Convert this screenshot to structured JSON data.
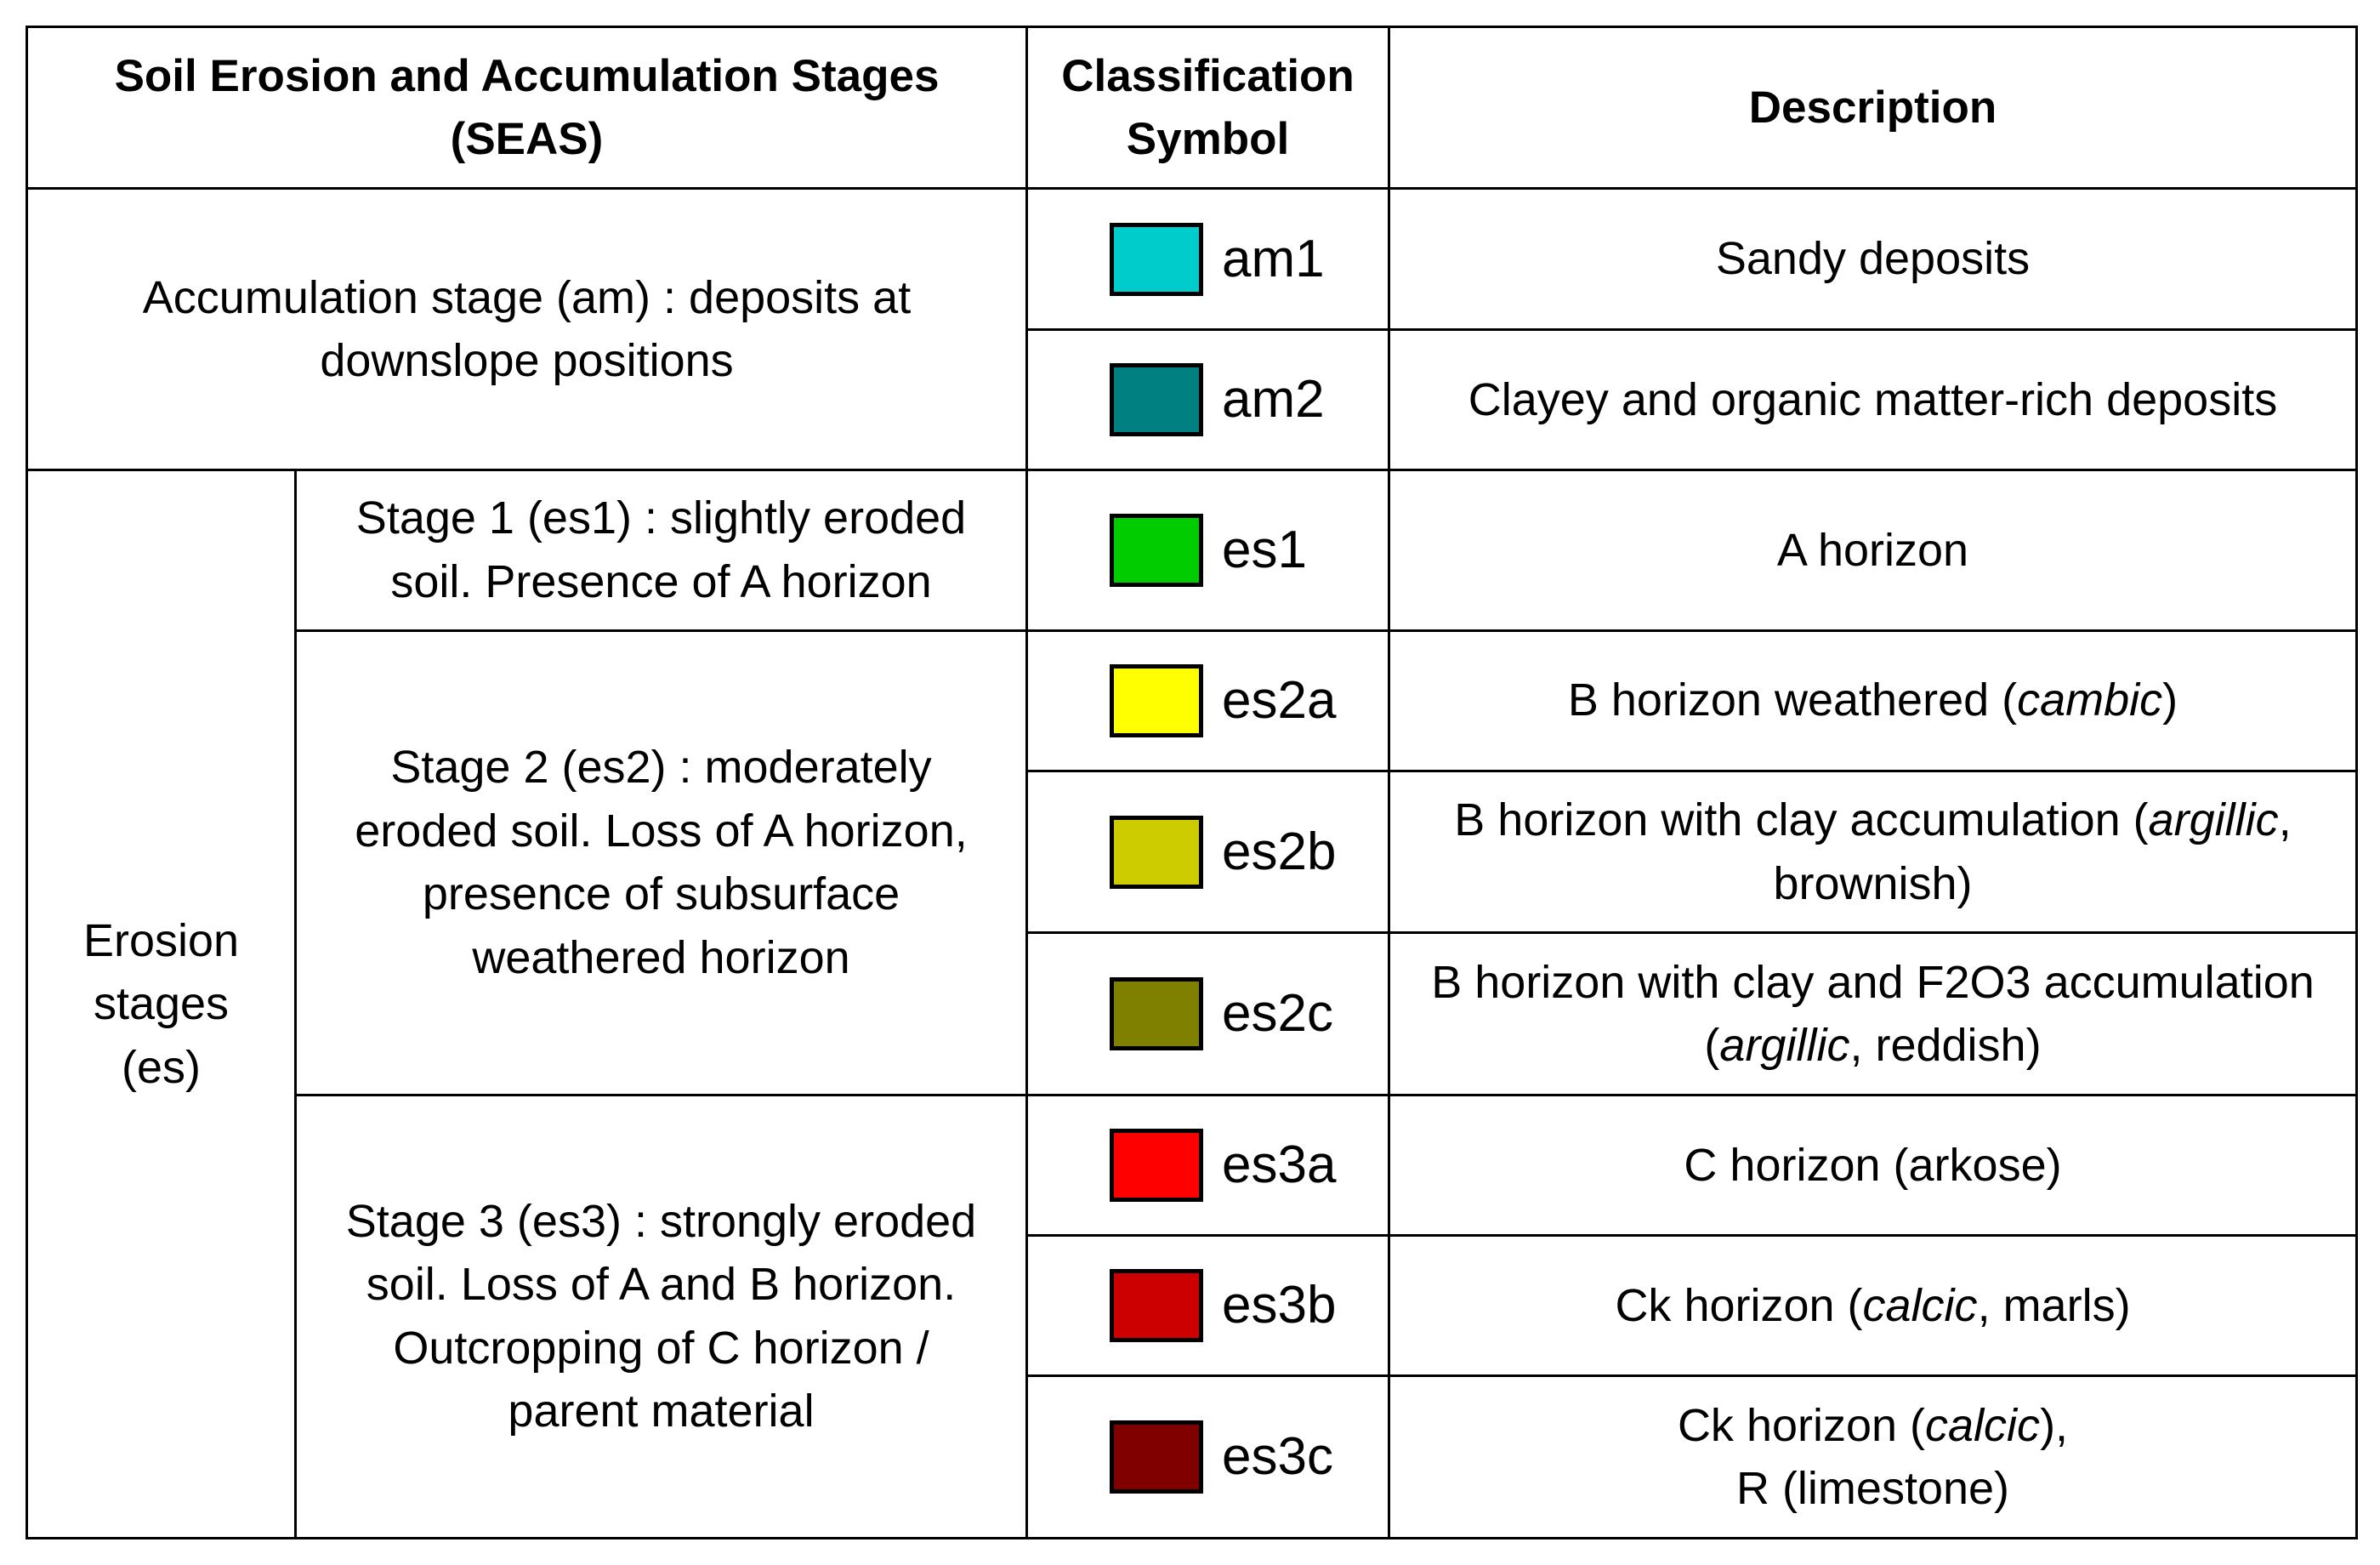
{
  "header": {
    "seas": "Soil Erosion and Accumulation Stages (SEAS)",
    "symbol": "Classification Symbol",
    "description": "Description"
  },
  "groups": {
    "accumulation": "Accumulation stage (am) : deposits at downslope positions",
    "erosion": "Erosion stages (es)",
    "stage1": "Stage 1 (es1) : slightly eroded soil. Presence of A horizon",
    "stage2": "Stage 2 (es2) : moderately eroded soil. Loss of A horizon, presence of subsurface weathered horizon",
    "stage3": "Stage 3 (es3) : strongly eroded soil. Loss of A and B horizon. Outcropping of C horizon / parent material"
  },
  "rows": [
    {
      "code": "am1",
      "color": "#00CCCC",
      "description": [
        {
          "text": "Sandy deposits"
        }
      ]
    },
    {
      "code": "am2",
      "color": "#008080",
      "description": [
        {
          "text": "Clayey and organic matter-rich deposits"
        }
      ]
    },
    {
      "code": "es1",
      "color": "#00CC00",
      "description": [
        {
          "text": "A horizon"
        }
      ]
    },
    {
      "code": "es2a",
      "color": "#FFFF00",
      "description": [
        {
          "text": "B horizon weathered ("
        },
        {
          "text": "cambic",
          "italic": true
        },
        {
          "text": ")"
        }
      ]
    },
    {
      "code": "es2b",
      "color": "#CCCC00",
      "description": [
        {
          "text": "B horizon with clay accumulation ("
        },
        {
          "text": "argillic",
          "italic": true
        },
        {
          "text": ", brownish)"
        }
      ]
    },
    {
      "code": "es2c",
      "color": "#808000",
      "description": [
        {
          "text": "B horizon with clay and F2O3 accumulation ("
        },
        {
          "text": "argillic",
          "italic": true
        },
        {
          "text": ", reddish)"
        }
      ]
    },
    {
      "code": "es3a",
      "color": "#FF0000",
      "description": [
        {
          "text": "C horizon (arkose)"
        }
      ]
    },
    {
      "code": "es3b",
      "color": "#CC0000",
      "description": [
        {
          "text": "Ck horizon ("
        },
        {
          "text": "calcic",
          "italic": true
        },
        {
          "text": ", marls)"
        }
      ]
    },
    {
      "code": "es3c",
      "color": "#800000",
      "description": [
        {
          "text": "Ck horizon ("
        },
        {
          "text": "calcic",
          "italic": true
        },
        {
          "text": "),"
        },
        {
          "br": true
        },
        {
          "text": "R (limestone)"
        }
      ]
    }
  ]
}
